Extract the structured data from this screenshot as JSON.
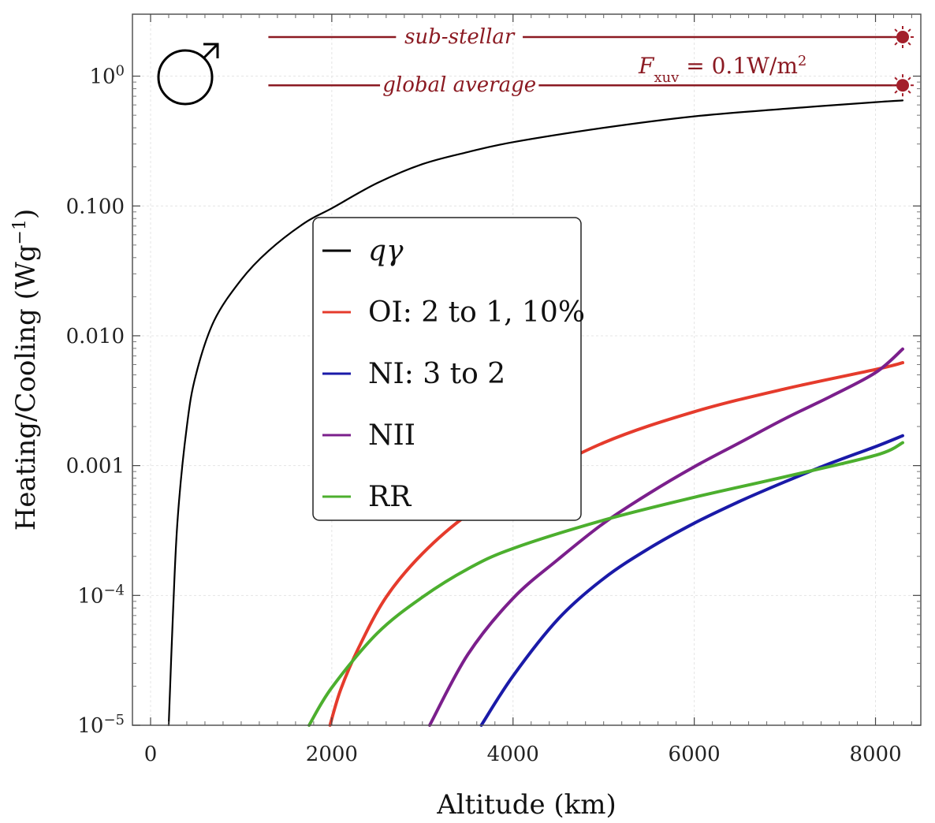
{
  "chart_data": {
    "type": "line",
    "xlabel": "Altitude (km)",
    "ylabel": "Heating/Cooling (Wg",
    "ylabel_sup": "−1",
    "ylabel_close": ")",
    "yscale": "log",
    "xlim": [
      -200,
      8500
    ],
    "ylim": [
      1e-05,
      3.0
    ],
    "grid": true,
    "x_ticks": [
      0,
      2000,
      4000,
      6000,
      8000
    ],
    "x_tick_labels": [
      "0",
      "2000",
      "4000",
      "6000",
      "8000"
    ],
    "y_ticks": [
      1e-05,
      0.0001,
      0.001,
      0.01,
      0.1,
      1
    ],
    "y_tick_labels": [
      {
        "base": "10",
        "exp": "−5"
      },
      {
        "base": "10",
        "exp": "−4"
      },
      {
        "base": "0.001",
        "exp": ""
      },
      {
        "base": "0.010",
        "exp": ""
      },
      {
        "base": "0.100",
        "exp": ""
      },
      {
        "base": "10",
        "exp": "0"
      }
    ],
    "legend_position": "center-left",
    "series": [
      {
        "name": "qγ",
        "color": "#000000",
        "width": 2.2,
        "x": [
          200,
          250,
          300,
          400,
          500,
          700,
          1000,
          1300,
          1700,
          2000,
          2500,
          3000,
          3500,
          4000,
          5000,
          6000,
          7000,
          8000,
          8300
        ],
        "y": [
          1e-05,
          8e-05,
          0.0004,
          0.002,
          0.005,
          0.013,
          0.027,
          0.045,
          0.074,
          0.096,
          0.15,
          0.21,
          0.26,
          0.31,
          0.4,
          0.49,
          0.56,
          0.63,
          0.65
        ]
      },
      {
        "name": "OI: 2 to 1, 10%",
        "color": "#e53b2c",
        "width": 4,
        "x": [
          1980,
          2100,
          2300,
          2600,
          3000,
          3500,
          4000,
          5000,
          6000,
          7000,
          8000,
          8300
        ],
        "y": [
          1e-05,
          1.9e-05,
          4e-05,
          9.7e-05,
          0.00021,
          0.00042,
          0.00067,
          0.0015,
          0.0026,
          0.0039,
          0.0055,
          0.0062
        ]
      },
      {
        "name": "NI: 3 to 2",
        "color": "#1a1aa8",
        "width": 4,
        "x": [
          3650,
          4000,
          4500,
          5000,
          5500,
          6000,
          6500,
          7000,
          7500,
          8000,
          8300
        ],
        "y": [
          1e-05,
          2.4e-05,
          6.6e-05,
          0.000135,
          0.00023,
          0.00036,
          0.00053,
          0.00075,
          0.00104,
          0.0014,
          0.0017
        ]
      },
      {
        "name": "NII",
        "color": "#7b1f8c",
        "width": 4,
        "x": [
          3080,
          3500,
          4000,
          4500,
          5000,
          5500,
          6000,
          6500,
          7000,
          7500,
          8000,
          8300
        ],
        "y": [
          1e-05,
          3.5e-05,
          9.5e-05,
          0.00019,
          0.00036,
          0.00061,
          0.00098,
          0.0015,
          0.0023,
          0.0034,
          0.0052,
          0.0079
        ]
      },
      {
        "name": "RR",
        "color": "#4caf2e",
        "width": 4,
        "x": [
          1750,
          2000,
          2500,
          3000,
          3500,
          4000,
          5000,
          6000,
          7000,
          8000,
          8300
        ],
        "y": [
          1e-05,
          1.95e-05,
          5.1e-05,
          9.7e-05,
          0.00016,
          0.00023,
          0.00038,
          0.00057,
          0.00082,
          0.0012,
          0.0015
        ]
      }
    ],
    "annotations": {
      "sub_stellar": {
        "label": "sub-stellar",
        "y": 2.0,
        "x_start": 1300,
        "x_end": 8300
      },
      "global_average": {
        "label": "global average",
        "y": 0.85,
        "x_start": 1300,
        "x_end": 8300
      },
      "flux_label": {
        "F": "F",
        "sub": "xuv",
        "rest": " = 0.1W/m",
        "sup": "2"
      }
    },
    "planet_symbol": "♂",
    "colors": {
      "annotation": "#8b1a22",
      "sun": "#a31f2b"
    }
  }
}
